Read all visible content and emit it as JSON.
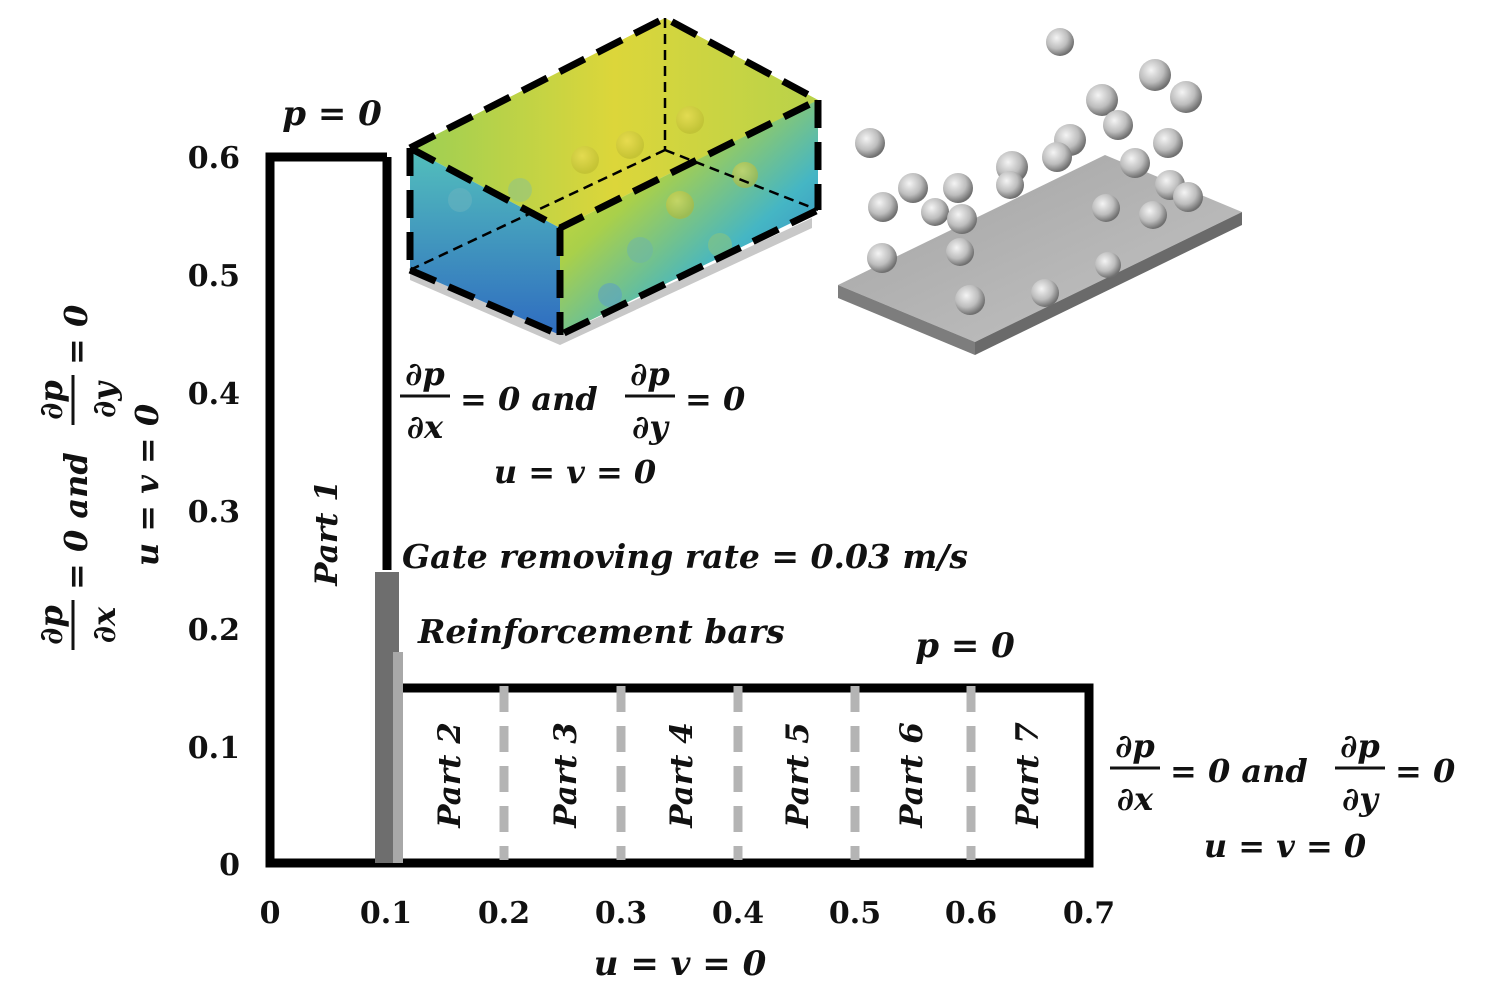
{
  "axes": {
    "x_ticks": [
      "0",
      "0.1",
      "0.2",
      "0.3",
      "0.4",
      "0.5",
      "0.6",
      "0.7"
    ],
    "y_ticks": [
      "0",
      "0.1",
      "0.2",
      "0.3",
      "0.4",
      "0.5",
      "0.6"
    ]
  },
  "parts": [
    "Part 1",
    "Part 2",
    "Part 3",
    "Part 4",
    "Part 5",
    "Part 6",
    "Part 7"
  ],
  "boundary": {
    "top_outlet": "p = 0",
    "right_outlet": "p = 0",
    "bottom": "u = v = 0",
    "dp": "∂p",
    "dx": "∂x",
    "dy": "∂y",
    "eq_zero_and": "= 0 and",
    "eq_zero": "= 0",
    "no_slip": "u = v = 0"
  },
  "labels": {
    "gate_rate": "Gate removing rate = 0.03 m/s",
    "reinforcement": "Reinforcement bars"
  },
  "colors": {
    "outline": "#000000",
    "gate": "#6e6e6e",
    "bars": "#a8a8a8",
    "dividers": "#b4b4b4",
    "plate": "#9a9a9a"
  }
}
